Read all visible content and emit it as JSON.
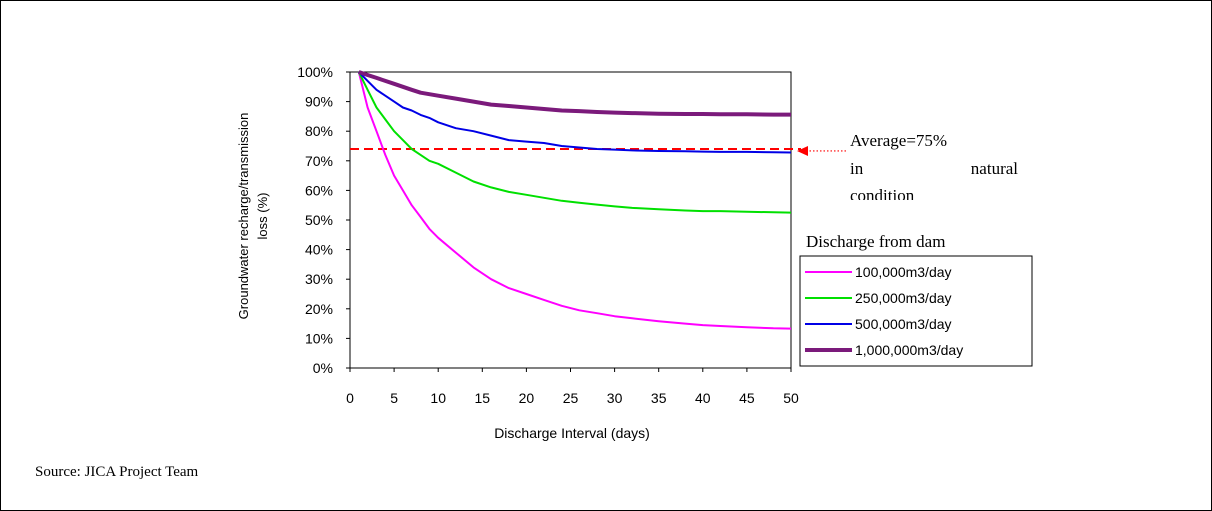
{
  "source_note": "Source: JICA Project Team",
  "chart_data": {
    "type": "line",
    "xlabel": "Discharge Interval (days)",
    "ylabel": "Groundwater recharge/transmission loss (%)",
    "xlim": [
      0,
      50
    ],
    "ylim": [
      0,
      100
    ],
    "xticks": [
      "0",
      "5",
      "10",
      "15",
      "20",
      "25",
      "30",
      "35",
      "40",
      "45",
      "50"
    ],
    "yticks": [
      "0%",
      "10%",
      "20%",
      "30%",
      "40%",
      "50%",
      "60%",
      "70%",
      "80%",
      "90%",
      "100%"
    ],
    "grid": false,
    "legend": {
      "title": "Discharge from dam",
      "placement": "right"
    },
    "x": [
      1,
      2,
      3,
      4,
      5,
      6,
      7,
      8,
      9,
      10,
      12,
      14,
      16,
      18,
      20,
      22,
      24,
      26,
      28,
      30,
      32,
      35,
      38,
      40,
      42,
      45,
      48,
      50
    ],
    "series": [
      {
        "name": "100,000m3/day",
        "color": "#ff00ff",
        "values": [
          100,
          88,
          80,
          72,
          65,
          60,
          55,
          51,
          47,
          44,
          39,
          34,
          30,
          27,
          25,
          23,
          21,
          19.5,
          18.5,
          17.5,
          16.8,
          15.8,
          15,
          14.5,
          14.2,
          13.8,
          13.4,
          13.3
        ]
      },
      {
        "name": "250,000m3/day",
        "color": "#00e000",
        "values": [
          100,
          94,
          88,
          84,
          80,
          77,
          74,
          72,
          70,
          69,
          66,
          63,
          61,
          59.5,
          58.5,
          57.5,
          56.5,
          55.8,
          55.2,
          54.6,
          54.1,
          53.6,
          53.2,
          53,
          53,
          52.8,
          52.6,
          52.5
        ]
      },
      {
        "name": "500,000m3/day",
        "color": "#0000e6",
        "values": [
          100,
          97,
          94,
          92,
          90,
          88,
          87,
          85.5,
          84.5,
          83,
          81,
          80,
          78.5,
          77,
          76.5,
          76,
          75,
          74.5,
          74,
          73.8,
          73.5,
          73.3,
          73.2,
          73.1,
          73,
          73,
          72.9,
          72.8
        ]
      },
      {
        "name": "1,000,000m3/day",
        "color": "#7b1a7b",
        "values": [
          100,
          99,
          98,
          97,
          96,
          95,
          94,
          93,
          92.5,
          92,
          91,
          90,
          89,
          88.5,
          88,
          87.5,
          87,
          86.8,
          86.5,
          86.3,
          86.1,
          85.9,
          85.8,
          85.8,
          85.7,
          85.7,
          85.6,
          85.6
        ]
      }
    ],
    "reference_line": {
      "value": 74,
      "color": "#ff0000",
      "annotation_lines": [
        "Average=75%",
        "in natural",
        "condition"
      ]
    }
  }
}
